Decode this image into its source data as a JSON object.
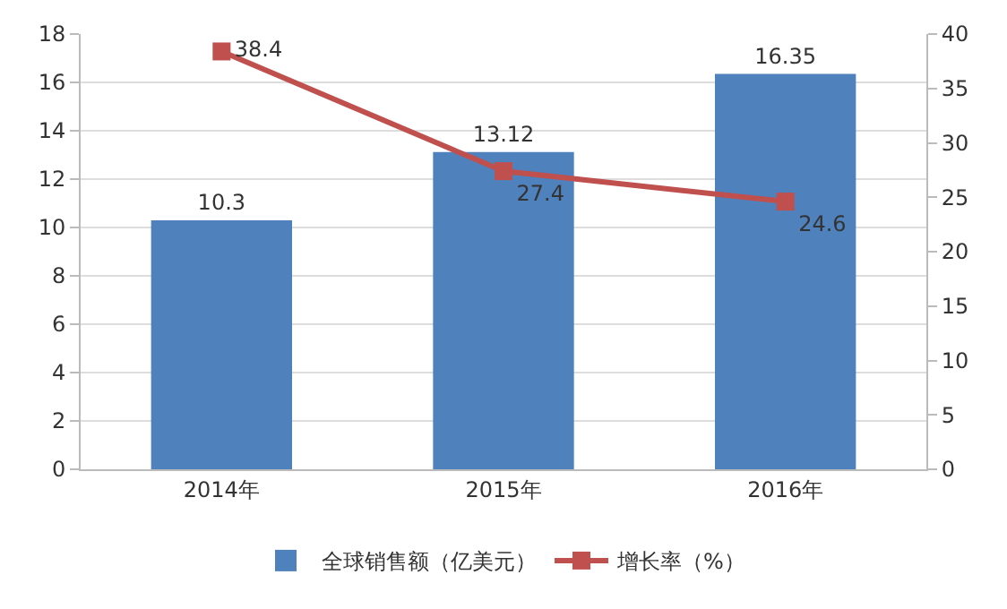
{
  "chart_data": {
    "type": "bar",
    "categories": [
      "2014年",
      "2015年",
      "2016年"
    ],
    "series": [
      {
        "name": "全球销售额（亿美元）",
        "color": "#4f81bd",
        "values": [
          10.3,
          13.12,
          16.35
        ]
      },
      {
        "name": "增长率（%）",
        "type": "line",
        "axis": "y2",
        "color": "#c0504d",
        "values": [
          38.4,
          27.4,
          24.6
        ],
        "marker": "square"
      }
    ],
    "ylim": [
      0,
      18
    ],
    "yticks": [
      0,
      2,
      4,
      6,
      8,
      10,
      12,
      14,
      16,
      18
    ],
    "y2lim": [
      0,
      40
    ],
    "y2ticks": [
      0,
      5,
      10,
      15,
      20,
      25,
      30,
      35,
      40
    ],
    "grid": "y",
    "legend": "bottom",
    "data_labels": true
  }
}
